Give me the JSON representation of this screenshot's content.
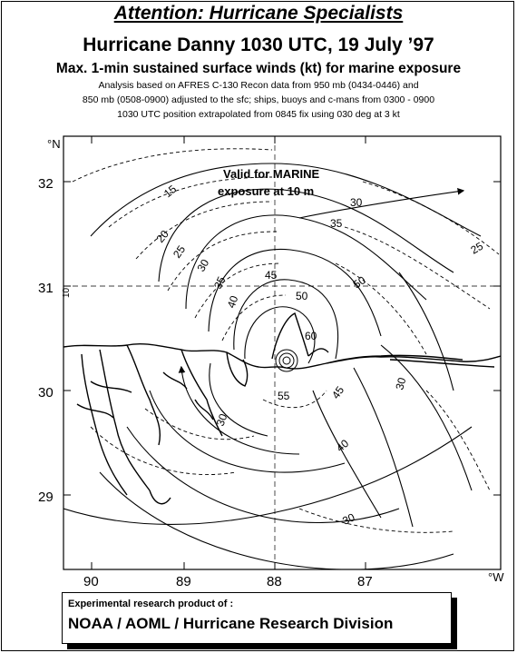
{
  "header": {
    "attention": "Attention: Hurricane Specialists",
    "title": "Hurricane Danny   1030 UTC, 19 July ’97",
    "subtitle": "Max. 1-min sustained surface winds (kt) for marine exposure",
    "note1": "Analysis based on  AFRES C-130 Recon data from 950 mb (0434-0446)  and",
    "note2": "850 mb (0508-0900)  adjusted to the sfc; ships,  buoys and c-mans  from 0300 - 0900",
    "note3": "1030 UTC position extrapolated from 0845  fix using 030 deg at 3 kt"
  },
  "map": {
    "lat_unit": "°N",
    "lon_unit": "°W",
    "lat_labels": [
      "32",
      "31",
      "30",
      "29"
    ],
    "lon_labels": [
      "90",
      "89",
      "88",
      "87"
    ],
    "edge_label": "10",
    "valid_line1": "Valid for MARINE",
    "valid_line2": "exposure at 10 m",
    "isotach_labels": [
      "15",
      "20",
      "25",
      "30",
      "35",
      "40",
      "45",
      "50",
      "55",
      "60",
      "30",
      "35",
      "45",
      "40",
      "30",
      "30",
      "25",
      "30",
      "50"
    ]
  },
  "footer": {
    "line1": "Experimental research product of :",
    "line2": "NOAA / AOML / Hurricane Research Division"
  }
}
